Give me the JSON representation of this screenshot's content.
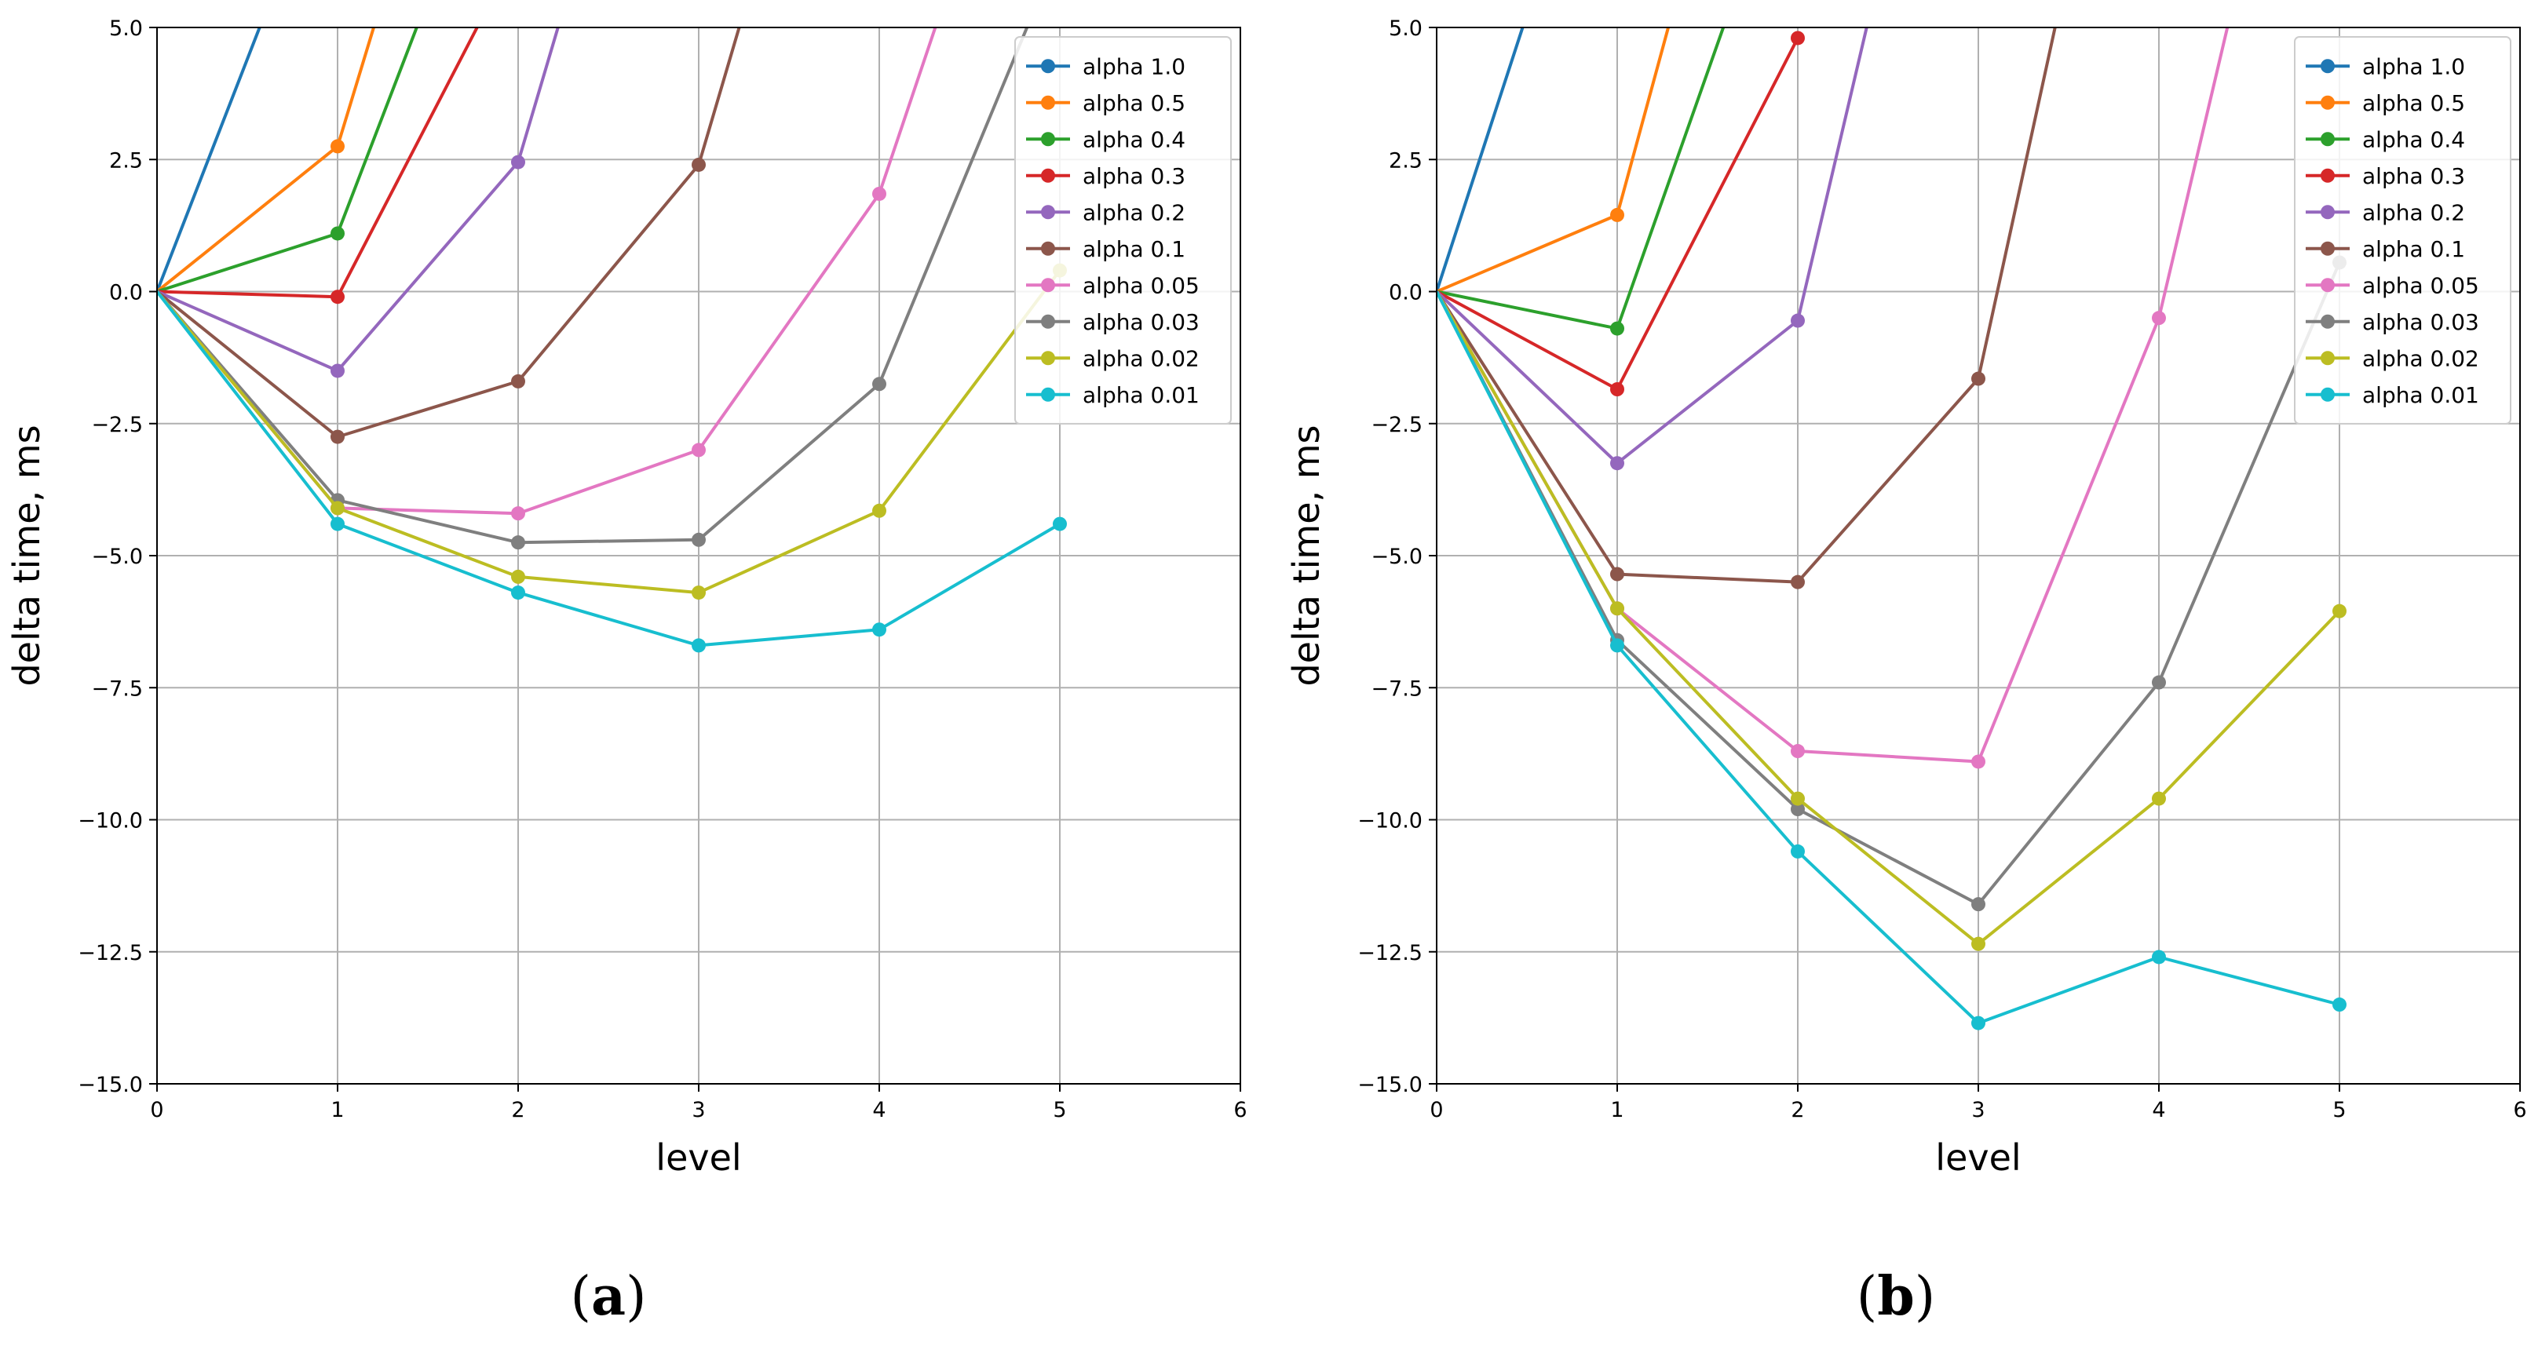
{
  "chart_data": [
    {
      "type": "line",
      "caption_open": "(",
      "caption_letter": "a",
      "caption_close": ")",
      "xlabel": "level",
      "ylabel": "delta time, ms",
      "xlim": [
        0,
        6
      ],
      "ylim": [
        -15.0,
        5.0
      ],
      "xticks": [
        "0",
        "1",
        "2",
        "3",
        "4",
        "5",
        "6"
      ],
      "yticks": [
        "5.0",
        "2.5",
        "0.0",
        "−2.5",
        "−5.0",
        "−7.5",
        "−10.0",
        "−12.5",
        "−15.0"
      ],
      "grid": true,
      "legend_position": "top-right",
      "x": [
        0,
        1,
        2,
        3,
        4,
        5
      ],
      "series": [
        {
          "name": "alpha 1.0",
          "color": "#1f77b4",
          "values": [
            0,
            8.8,
            null,
            null,
            null,
            null
          ]
        },
        {
          "name": "alpha 0.5",
          "color": "#ff7f0e",
          "values": [
            0,
            2.75,
            14,
            null,
            null,
            null
          ]
        },
        {
          "name": "alpha 0.4",
          "color": "#2ca02c",
          "values": [
            0,
            1.1,
            10,
            null,
            null,
            null
          ]
        },
        {
          "name": "alpha 0.3",
          "color": "#d62728",
          "values": [
            0,
            -0.1,
            6.5,
            null,
            null,
            null
          ]
        },
        {
          "name": "alpha 0.2",
          "color": "#9467bd",
          "values": [
            0,
            -1.5,
            2.45,
            14,
            null,
            null
          ]
        },
        {
          "name": "alpha 0.1",
          "color": "#8c564b",
          "values": [
            0,
            -2.75,
            -1.7,
            2.4,
            14,
            null
          ]
        },
        {
          "name": "alpha 0.05",
          "color": "#e377c2",
          "values": [
            0,
            -4.1,
            -4.2,
            -3.0,
            1.85,
            12
          ]
        },
        {
          "name": "alpha 0.03",
          "color": "#7f7f7f",
          "values": [
            0,
            -3.95,
            -4.75,
            -4.7,
            -1.75,
            6.5
          ]
        },
        {
          "name": "alpha 0.02",
          "color": "#bcbd22",
          "values": [
            0,
            -4.1,
            -5.4,
            -5.7,
            -4.15,
            0.4
          ]
        },
        {
          "name": "alpha 0.01",
          "color": "#17becf",
          "values": [
            0,
            -4.4,
            -5.7,
            -6.7,
            -6.4,
            -4.4
          ]
        }
      ]
    },
    {
      "type": "line",
      "caption_open": "(",
      "caption_letter": "b",
      "caption_close": ")",
      "xlabel": "level",
      "ylabel": "delta time, ms",
      "xlim": [
        0,
        6
      ],
      "ylim": [
        -15.0,
        5.0
      ],
      "xticks": [
        "0",
        "1",
        "2",
        "3",
        "4",
        "5",
        "6"
      ],
      "yticks": [
        "5.0",
        "2.5",
        "0.0",
        "−2.5",
        "−5.0",
        "−7.5",
        "−10.0",
        "−12.5",
        "−15.0"
      ],
      "grid": true,
      "legend_position": "top-right",
      "x": [
        0,
        1,
        2,
        3,
        4,
        5
      ],
      "series": [
        {
          "name": "alpha 1.0",
          "color": "#1f77b4",
          "values": [
            0,
            10.5,
            null,
            null,
            null,
            null
          ]
        },
        {
          "name": "alpha 0.5",
          "color": "#ff7f0e",
          "values": [
            0,
            1.45,
            14,
            null,
            null,
            null
          ]
        },
        {
          "name": "alpha 0.4",
          "color": "#2ca02c",
          "values": [
            0,
            -0.7,
            9,
            null,
            null,
            null
          ]
        },
        {
          "name": "alpha 0.3",
          "color": "#d62728",
          "values": [
            0,
            -1.85,
            4.8,
            null,
            null,
            null
          ]
        },
        {
          "name": "alpha 0.2",
          "color": "#9467bd",
          "values": [
            0,
            -3.25,
            -0.55,
            14,
            null,
            null
          ]
        },
        {
          "name": "alpha 0.1",
          "color": "#8c564b",
          "values": [
            0,
            -5.35,
            -5.5,
            -1.65,
            14,
            null
          ]
        },
        {
          "name": "alpha 0.05",
          "color": "#e377c2",
          "values": [
            0,
            -6.0,
            -8.7,
            -8.9,
            -0.5,
            14
          ]
        },
        {
          "name": "alpha 0.03",
          "color": "#7f7f7f",
          "values": [
            0,
            -6.6,
            -9.8,
            -11.6,
            -7.4,
            0.55
          ]
        },
        {
          "name": "alpha 0.02",
          "color": "#bcbd22",
          "values": [
            0,
            -6.0,
            -9.6,
            -12.35,
            -9.6,
            -6.05
          ]
        },
        {
          "name": "alpha 0.01",
          "color": "#17becf",
          "values": [
            0,
            -6.7,
            -10.6,
            -13.85,
            -12.6,
            -13.5
          ]
        }
      ]
    }
  ]
}
